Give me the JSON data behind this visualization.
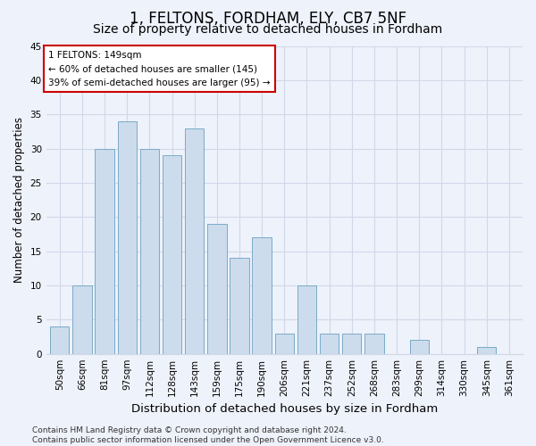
{
  "title1": "1, FELTONS, FORDHAM, ELY, CB7 5NF",
  "title2": "Size of property relative to detached houses in Fordham",
  "xlabel": "Distribution of detached houses by size in Fordham",
  "ylabel": "Number of detached properties",
  "categories": [
    "50sqm",
    "66sqm",
    "81sqm",
    "97sqm",
    "112sqm",
    "128sqm",
    "143sqm",
    "159sqm",
    "175sqm",
    "190sqm",
    "206sqm",
    "221sqm",
    "237sqm",
    "252sqm",
    "268sqm",
    "283sqm",
    "299sqm",
    "314sqm",
    "330sqm",
    "345sqm",
    "361sqm"
  ],
  "values": [
    4,
    10,
    30,
    34,
    30,
    29,
    33,
    19,
    14,
    17,
    3,
    10,
    3,
    3,
    3,
    0,
    2,
    0,
    0,
    1,
    0
  ],
  "bar_color": "#ccdcec",
  "bar_edge_color": "#7aaac8",
  "background_color": "#eef2fb",
  "grid_color": "#d0d8e8",
  "ylim": [
    0,
    45
  ],
  "yticks": [
    0,
    5,
    10,
    15,
    20,
    25,
    30,
    35,
    40,
    45
  ],
  "annotation_line1": "1 FELTONS: 149sqm",
  "annotation_line2": "← 60% of detached houses are smaller (145)",
  "annotation_line3": "39% of semi-detached houses are larger (95) →",
  "annotation_box_color": "#ffffff",
  "annotation_edge_color": "#cc0000",
  "footer_text": "Contains HM Land Registry data © Crown copyright and database right 2024.\nContains public sector information licensed under the Open Government Licence v3.0.",
  "title1_fontsize": 12,
  "title2_fontsize": 10,
  "xlabel_fontsize": 9.5,
  "ylabel_fontsize": 8.5,
  "tick_fontsize": 7.5,
  "footer_fontsize": 6.5,
  "annot_fontsize": 7.5
}
